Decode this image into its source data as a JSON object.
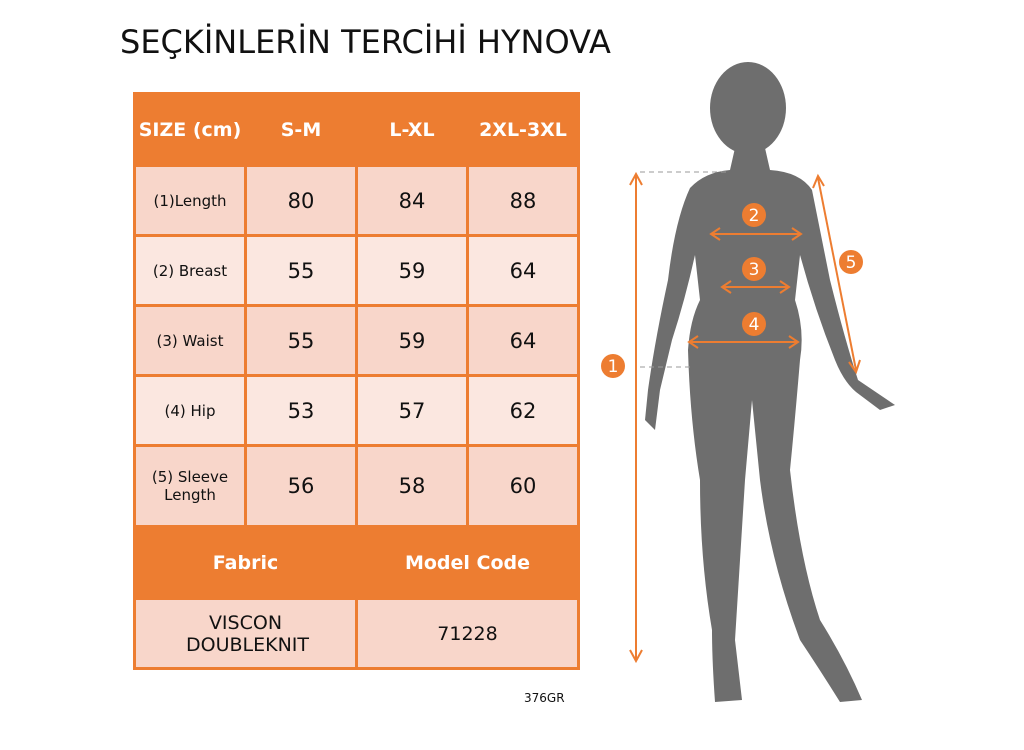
{
  "table": {
    "headers": [
      "SIZE (cm)",
      "S-M",
      "L-XL",
      "2XL-3XL"
    ],
    "rows": [
      {
        "label": "(1)Length",
        "values": [
          "80",
          "84",
          "88"
        ]
      },
      {
        "label": "(2) Breast",
        "values": [
          "55",
          "59",
          "64"
        ]
      },
      {
        "label": "(3) Waist",
        "values": [
          "55",
          "59",
          "64"
        ]
      },
      {
        "label": "(4) Hip",
        "values": [
          "53",
          "57",
          "62"
        ]
      },
      {
        "label": "(5) Sleeve Length",
        "values": [
          "56",
          "58",
          "60"
        ]
      }
    ],
    "fabric_label": "Fabric",
    "model_code_label": "Model Code",
    "fabric_value": "VISCON DOUBLEKNIT",
    "model_code_value": "71228"
  },
  "product_code": "376GR",
  "watermark": "SEÇKİNLERİN TERCİHİ HYNOVA",
  "diagram": {
    "markers": [
      "1",
      "2",
      "3",
      "4",
      "5"
    ]
  },
  "colors": {
    "accent": "#ED7D31",
    "silhouette": "#6E6E6E"
  }
}
